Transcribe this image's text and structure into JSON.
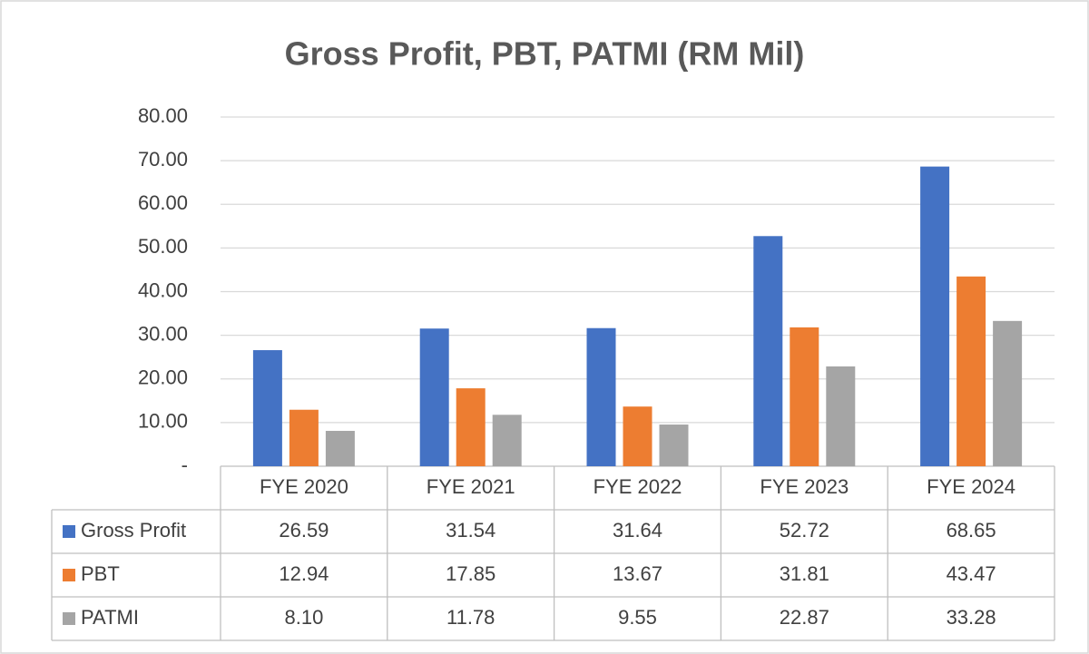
{
  "chart_data": {
    "type": "bar",
    "title": "Gross Profit, PBT, PATMI (RM Mil)",
    "categories": [
      "FYE 2020",
      "FYE 2021",
      "FYE 2022",
      "FYE 2023",
      "FYE 2024"
    ],
    "series": [
      {
        "name": "Gross Profit",
        "color": "#4472c4",
        "values": [
          26.59,
          31.54,
          31.64,
          52.72,
          68.65
        ],
        "value_labels": [
          "26.59",
          "31.54",
          "31.64",
          "52.72",
          "68.65"
        ]
      },
      {
        "name": "PBT",
        "color": "#ed7d31",
        "values": [
          12.94,
          17.85,
          13.67,
          31.81,
          43.47
        ],
        "value_labels": [
          "12.94",
          "17.85",
          "13.67",
          "31.81",
          "43.47"
        ]
      },
      {
        "name": "PATMI",
        "color": "#a5a5a5",
        "values": [
          8.1,
          11.78,
          9.55,
          22.87,
          33.28
        ],
        "value_labels": [
          "8.10",
          "11.78",
          "9.55",
          "22.87",
          "33.28"
        ]
      }
    ],
    "ylim": [
      0,
      80
    ],
    "yticks": [
      {
        "value": 0,
        "label": "-"
      },
      {
        "value": 10,
        "label": "10.00"
      },
      {
        "value": 20,
        "label": "20.00"
      },
      {
        "value": 30,
        "label": "30.00"
      },
      {
        "value": 40,
        "label": "40.00"
      },
      {
        "value": 50,
        "label": "50.00"
      },
      {
        "value": 60,
        "label": "60.00"
      },
      {
        "value": 70,
        "label": "70.00"
      },
      {
        "value": 80,
        "label": "80.00"
      }
    ],
    "grid": true
  }
}
